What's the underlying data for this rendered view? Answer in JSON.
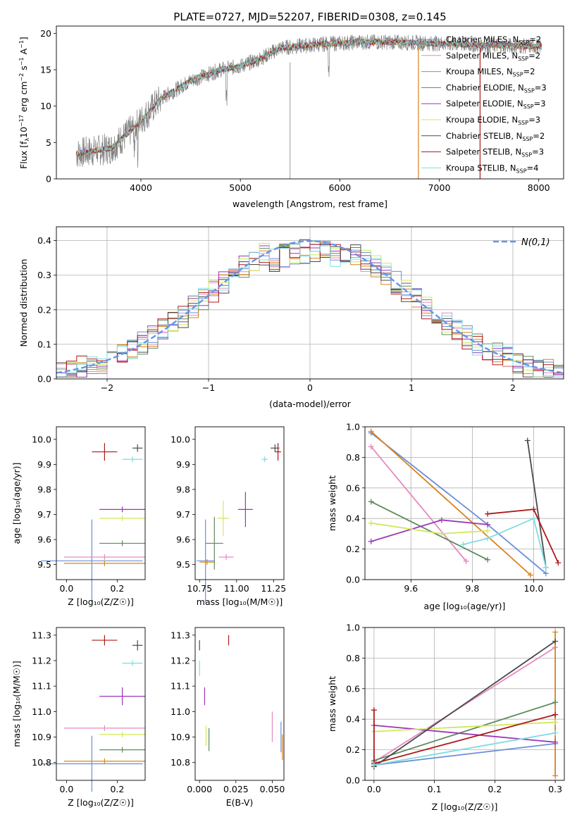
{
  "colors": {
    "Chabrier MILES": "#6a8fd8",
    "Salpeter MILES": "#e58abf",
    "Kroupa MILES": "#d9821e",
    "Chabrier ELODIE": "#5d8a5d",
    "Salpeter ELODIE": "#9b36b8",
    "Kroupa ELODIE": "#cfe85a",
    "Chabrier STELIB": "#4a4a4a",
    "Salpeter STELIB": "#ad1a1a",
    "Kroupa STELIB": "#7fdce0",
    "gaussian": "#6495ed"
  },
  "chart_data": [
    {
      "type": "line",
      "title": "PLATE=0727, MJD=52207, FIBERID=0308, z=0.145",
      "xlabel": "wavelength [Angstrom, rest frame]",
      "ylabel": "Flux [f_λ 10^-17 erg cm^-2 s^-1 A^-1]",
      "xlim": [
        3150,
        8250
      ],
      "ylim": [
        0,
        21
      ],
      "xticks": [
        "4000",
        "5000",
        "6000",
        "7000",
        "8000"
      ],
      "yticks": [
        "0",
        "5",
        "10",
        "15",
        "20"
      ],
      "legend": [
        "Chabrier MILES, N_SSP=2",
        "Salpeter MILES, N_SSP=2",
        "Kroupa MILES, N_SSP=2",
        "Chabrier ELODIE, N_SSP=3",
        "Salpeter ELODIE, N_SSP=3",
        "Kroupa ELODIE, N_SSP=3",
        "Chabrier STELIB, N_SSP=2",
        "Salpeter STELIB, N_SSP=3",
        "Kroupa STELIB, N_SSP=4"
      ],
      "continuum": [
        [
          3350,
          3.5
        ],
        [
          3500,
          3.8
        ],
        [
          3700,
          4.2
        ],
        [
          3850,
          6
        ],
        [
          4000,
          8
        ],
        [
          4200,
          11
        ],
        [
          4500,
          13.5
        ],
        [
          4800,
          15
        ],
        [
          5000,
          15.5
        ],
        [
          5200,
          16.5
        ],
        [
          5400,
          18
        ],
        [
          5800,
          18.5
        ],
        [
          6200,
          18.8
        ],
        [
          6500,
          18.8
        ],
        [
          7000,
          18.6
        ],
        [
          7400,
          18.4
        ],
        [
          8000,
          18.2
        ]
      ]
    },
    {
      "type": "step",
      "xlabel": "(data-model)/error",
      "ylabel": "Normed distribution",
      "xlim": [
        -2.5,
        2.5
      ],
      "ylim": [
        0,
        0.44
      ],
      "xticks": [
        "−2",
        "−1",
        "0",
        "1",
        "2"
      ],
      "yticks": [
        "0.0",
        "0.1",
        "0.2",
        "0.3",
        "0.4"
      ],
      "legend": "N(0,1)"
    },
    {
      "type": "errorbar",
      "panel": "age-vs-Z",
      "xlabel": "Z [log10(Z/Z☉)]",
      "ylabel": "age [log10(age/yr)]",
      "xlim": [
        -0.04,
        0.31
      ],
      "ylim": [
        9.44,
        10.05
      ],
      "xticks": [
        "0.0",
        "0.2"
      ],
      "yticks": [
        "9.5",
        "9.6",
        "9.7",
        "9.8",
        "9.9",
        "10.0"
      ],
      "points": [
        {
          "model": "Chabrier MILES",
          "x": 0.1,
          "xerr": 0.2,
          "y": 9.515,
          "yerr": 0.33
        },
        {
          "model": "Salpeter MILES",
          "x": 0.15,
          "xerr": 0.16,
          "y": 9.53,
          "yerr": 0.0
        },
        {
          "model": "Kroupa MILES",
          "x": 0.15,
          "xerr": 0.16,
          "y": 9.505,
          "yerr": 0.0
        },
        {
          "model": "Chabrier ELODIE",
          "x": 0.22,
          "xerr": 0.09,
          "y": 9.585,
          "yerr": 0.0
        },
        {
          "model": "Salpeter ELODIE",
          "x": 0.22,
          "xerr": 0.09,
          "y": 9.72,
          "yerr": 0.0
        },
        {
          "model": "Kroupa ELODIE",
          "x": 0.22,
          "xerr": 0.09,
          "y": 9.685,
          "yerr": 0.0
        },
        {
          "model": "Chabrier STELIB",
          "x": 0.28,
          "xerr": 0.02,
          "y": 9.965,
          "yerr": 0.03
        },
        {
          "model": "Salpeter STELIB",
          "x": 0.15,
          "xerr": 0.05,
          "y": 9.95,
          "yerr": 0.07
        },
        {
          "model": "Kroupa STELIB",
          "x": 0.26,
          "xerr": 0.04,
          "y": 9.92,
          "yerr": 0.0
        }
      ]
    },
    {
      "type": "errorbar",
      "panel": "age-vs-mass",
      "xlabel": "mass [log10(M/M☉)]",
      "ylabel": "",
      "xlim": [
        10.72,
        11.32
      ],
      "ylim": [
        9.44,
        10.05
      ],
      "xticks": [
        "10.75",
        "11.00",
        "11.25"
      ],
      "yticks": [
        "9.5",
        "9.6",
        "9.7",
        "9.8",
        "9.9",
        "10.0"
      ],
      "points": [
        {
          "model": "Chabrier MILES",
          "x": 10.79,
          "xerr": 0.06,
          "y": 9.515,
          "yerr": 0.33
        },
        {
          "model": "Salpeter MILES",
          "x": 10.93,
          "xerr": 0.05,
          "y": 9.53,
          "yerr": 0.0
        },
        {
          "model": "Kroupa MILES",
          "x": 10.8,
          "xerr": 0.05,
          "y": 9.51,
          "yerr": 0.0
        },
        {
          "model": "Chabrier ELODIE",
          "x": 10.85,
          "xerr": 0.06,
          "y": 9.585,
          "yerr": 0.21
        },
        {
          "model": "Salpeter ELODIE",
          "x": 11.06,
          "xerr": 0.05,
          "y": 9.72,
          "yerr": 0.14
        },
        {
          "model": "Kroupa ELODIE",
          "x": 10.91,
          "xerr": 0.04,
          "y": 9.685,
          "yerr": 0.14
        },
        {
          "model": "Chabrier STELIB",
          "x": 11.26,
          "xerr": 0.03,
          "y": 9.965,
          "yerr": 0.03
        },
        {
          "model": "Salpeter STELIB",
          "x": 11.28,
          "xerr": 0.02,
          "y": 9.95,
          "yerr": 0.07
        },
        {
          "model": "Kroupa STELIB",
          "x": 11.19,
          "xerr": 0.02,
          "y": 9.92,
          "yerr": 0.0
        }
      ]
    },
    {
      "type": "line",
      "panel": "weight-vs-age",
      "xlabel": "age [log10(age/yr)]",
      "ylabel": "mass weight",
      "xlim": [
        9.45,
        10.1
      ],
      "ylim": [
        0,
        1.0
      ],
      "xticks": [
        "9.6",
        "9.8",
        "10.0"
      ],
      "yticks": [
        "0.0",
        "0.2",
        "0.4",
        "0.6",
        "0.8",
        "1.0"
      ],
      "series": [
        {
          "model": "Chabrier MILES",
          "x": [
            9.47,
            9.85,
            10.04
          ],
          "y": [
            0.96,
            0.36,
            0.04
          ]
        },
        {
          "model": "Salpeter MILES",
          "x": [
            9.47,
            9.78
          ],
          "y": [
            0.87,
            0.12
          ]
        },
        {
          "model": "Kroupa MILES",
          "x": [
            9.47,
            9.99
          ],
          "y": [
            0.97,
            0.03
          ]
        },
        {
          "model": "Chabrier ELODIE",
          "x": [
            9.47,
            9.85
          ],
          "y": [
            0.51,
            0.13
          ]
        },
        {
          "model": "Salpeter ELODIE",
          "x": [
            9.47,
            9.7,
            9.85
          ],
          "y": [
            0.25,
            0.39,
            0.36
          ]
        },
        {
          "model": "Kroupa ELODIE",
          "x": [
            9.47,
            9.7,
            9.85
          ],
          "y": [
            0.37,
            0.3,
            0.32
          ]
        },
        {
          "model": "Chabrier STELIB",
          "x": [
            9.98,
            10.04
          ],
          "y": [
            0.91,
            0.08
          ]
        },
        {
          "model": "Salpeter STELIB",
          "x": [
            9.85,
            10.0,
            10.08
          ],
          "y": [
            0.43,
            0.46,
            0.11
          ]
        },
        {
          "model": "Kroupa STELIB",
          "x": [
            9.77,
            9.85,
            10.0,
            10.04
          ],
          "y": [
            0.23,
            0.27,
            0.4,
            0.08
          ]
        }
      ]
    },
    {
      "type": "errorbar",
      "panel": "mass-vs-Z",
      "xlabel": "Z [log10(Z/Z☉)]",
      "ylabel": "mass [log10(M/M☉)]",
      "xlim": [
        -0.04,
        0.31
      ],
      "ylim": [
        10.73,
        11.33
      ],
      "xticks": [
        "0.0",
        "0.2"
      ],
      "yticks": [
        "10.8",
        "10.9",
        "11.0",
        "11.1",
        "11.2",
        "11.3"
      ],
      "points": [
        {
          "model": "Chabrier MILES",
          "x": 0.1,
          "xerr": 0.2,
          "y": 10.795,
          "yerr": 0.22
        },
        {
          "model": "Salpeter MILES",
          "x": 0.15,
          "xerr": 0.16,
          "y": 10.935,
          "yerr": 0.0
        },
        {
          "model": "Kroupa MILES",
          "x": 0.15,
          "xerr": 0.16,
          "y": 10.805,
          "yerr": 0.0
        },
        {
          "model": "Chabrier ELODIE",
          "x": 0.22,
          "xerr": 0.09,
          "y": 10.85,
          "yerr": 0.0
        },
        {
          "model": "Salpeter ELODIE",
          "x": 0.22,
          "xerr": 0.09,
          "y": 11.06,
          "yerr": 0.07
        },
        {
          "model": "Kroupa ELODIE",
          "x": 0.22,
          "xerr": 0.09,
          "y": 10.91,
          "yerr": 0.0
        },
        {
          "model": "Chabrier STELIB",
          "x": 0.28,
          "xerr": 0.02,
          "y": 11.26,
          "yerr": 0.04
        },
        {
          "model": "Salpeter STELIB",
          "x": 0.15,
          "xerr": 0.05,
          "y": 11.28,
          "yerr": 0.04
        },
        {
          "model": "Kroupa STELIB",
          "x": 0.26,
          "xerr": 0.04,
          "y": 11.19,
          "yerr": 0.0
        }
      ]
    },
    {
      "type": "errorbar",
      "panel": "mass-vs-EBV",
      "xlabel": "E(B-V)",
      "ylabel": "",
      "xlim": [
        -0.003,
        0.058
      ],
      "ylim": [
        10.73,
        11.33
      ],
      "xticks": [
        "0.000",
        "0.025",
        "0.050"
      ],
      "yticks": [
        "10.8",
        "10.9",
        "11.0",
        "11.1",
        "11.2",
        "11.3"
      ],
      "points": [
        {
          "model": "Chabrier MILES",
          "x": 0.056,
          "xerr": 0,
          "y": 10.9,
          "yerr": 0.12
        },
        {
          "model": "Salpeter MILES",
          "x": 0.05,
          "xerr": 0,
          "y": 10.94,
          "yerr": 0.12
        },
        {
          "model": "Kroupa MILES",
          "x": 0.057,
          "xerr": 0,
          "y": 10.86,
          "yerr": 0.1
        },
        {
          "model": "Chabrier ELODIE",
          "x": 0.0065,
          "xerr": 0,
          "y": 10.89,
          "yerr": 0.09
        },
        {
          "model": "Salpeter ELODIE",
          "x": 0.0035,
          "xerr": 0,
          "y": 11.06,
          "yerr": 0.07
        },
        {
          "model": "Kroupa ELODIE",
          "x": 0.0045,
          "xerr": 0,
          "y": 10.905,
          "yerr": 0.08
        },
        {
          "model": "Chabrier STELIB",
          "x": 0.0,
          "xerr": 0,
          "y": 11.26,
          "yerr": 0.04
        },
        {
          "model": "Salpeter STELIB",
          "x": 0.02,
          "xerr": 0,
          "y": 11.28,
          "yerr": 0.04
        },
        {
          "model": "Kroupa STELIB",
          "x": 0.0,
          "xerr": 0,
          "y": 11.17,
          "yerr": 0.06
        }
      ]
    },
    {
      "type": "line",
      "panel": "weight-vs-Z",
      "xlabel": "Z [log10(Z/Z☉)]",
      "ylabel": "mass weight",
      "xlim": [
        -0.015,
        0.315
      ],
      "ylim": [
        0,
        1.0
      ],
      "xticks": [
        "0.0",
        "0.1",
        "0.2",
        "0.3"
      ],
      "yticks": [
        "0.0",
        "0.2",
        "0.4",
        "0.6",
        "0.8",
        "1.0"
      ],
      "series": [
        {
          "model": "Chabrier MILES",
          "x": [
            0.0,
            0.3
          ],
          "y": [
            0.1,
            0.24
          ]
        },
        {
          "model": "Salpeter MILES",
          "x": [
            0.0,
            0.3
          ],
          "y": [
            0.12,
            0.87
          ]
        },
        {
          "model": "Kroupa MILES",
          "x": [
            0.3,
            0.3
          ],
          "y": [
            0.03,
            0.97
          ]
        },
        {
          "model": "Chabrier ELODIE",
          "x": [
            0.0,
            0.3
          ],
          "y": [
            0.13,
            0.51
          ]
        },
        {
          "model": "Salpeter ELODIE",
          "x": [
            0.0,
            0.3
          ],
          "y": [
            0.36,
            0.25
          ]
        },
        {
          "model": "Kroupa ELODIE",
          "x": [
            0.0,
            0.3
          ],
          "y": [
            0.32,
            0.38
          ]
        },
        {
          "model": "Chabrier STELIB",
          "x": [
            0.0,
            0.3
          ],
          "y": [
            0.09,
            0.91
          ]
        },
        {
          "model": "Salpeter STELIB",
          "x": [
            0.0,
            0.0,
            0.3
          ],
          "y": [
            0.46,
            0.11,
            0.43
          ]
        },
        {
          "model": "Kroupa STELIB",
          "x": [
            0.0,
            0.3
          ],
          "y": [
            0.1,
            0.31
          ]
        }
      ]
    }
  ]
}
